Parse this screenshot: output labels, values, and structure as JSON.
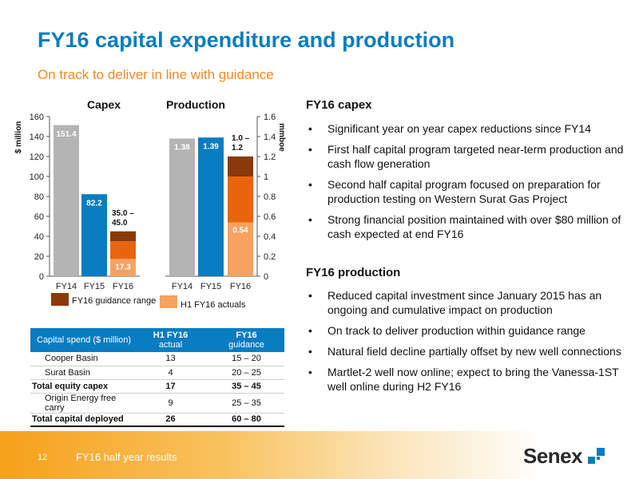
{
  "header": {
    "title": "FY16 capital expenditure and production",
    "subtitle": "On track to deliver in line with guidance"
  },
  "colors": {
    "title": "#0a7cc1",
    "subtitle": "#f08a24",
    "grey_bar": "#b4b4b4",
    "blue_bar": "#0a7cc1",
    "guidance_range": "#8a3a0a",
    "orange_mid": "#e8650d",
    "h1_actuals": "#f7a260",
    "table_header": "#0a7cc1"
  },
  "chart_data": [
    {
      "type": "bar",
      "title": "Capex",
      "ylabel": "$ million",
      "ylim": [
        0,
        160
      ],
      "yticks": [
        "0",
        "20",
        "40",
        "60",
        "80",
        "100",
        "120",
        "140",
        "160"
      ],
      "categories": [
        "FY14",
        "FY15",
        "FY16"
      ],
      "values": [
        151.4,
        82.2,
        null
      ],
      "data_labels": [
        "151.4",
        "82.2",
        ""
      ],
      "fy16_stack": {
        "h1_actuals": 17.3,
        "h1_label": "17.3",
        "guidance_low": 35.0,
        "guidance_high": 45.0,
        "guidance_label": "35.0 – 45.0"
      }
    },
    {
      "type": "bar",
      "title": "Production",
      "ylabel": "mmboe",
      "ylim": [
        0,
        1.6
      ],
      "yticks": [
        "0",
        "0.2",
        "0.4",
        "0.6",
        "0.8",
        "1",
        "1.2",
        "1.4",
        "1.6"
      ],
      "categories": [
        "FY14",
        "FY15",
        "FY16"
      ],
      "values": [
        1.38,
        1.39,
        null
      ],
      "data_labels": [
        "1.38",
        "1.39",
        ""
      ],
      "fy16_stack": {
        "h1_actuals": 0.54,
        "h1_label": "0.54",
        "guidance_low": 1.0,
        "guidance_high": 1.2,
        "guidance_label": "1.0 – 1.2"
      }
    }
  ],
  "legend": {
    "guidance": "FY16 guidance range",
    "actuals": "H1 FY16 actuals"
  },
  "table": {
    "header": {
      "name": "Capital spend ($ million)",
      "col1_top": "H1 FY16",
      "col1_sub": "actual",
      "col2_top": "FY16",
      "col2_sub": "guidance"
    },
    "rows": [
      {
        "name": "Cooper Basin",
        "actual": "13",
        "guidance": "15 – 20"
      },
      {
        "name": "Surat Basin",
        "actual": "4",
        "guidance": "20 – 25"
      },
      {
        "name": "Total equity capex",
        "actual": "17",
        "guidance": "35 – 45"
      },
      {
        "name": "Origin Energy free carry",
        "actual": "9",
        "guidance": "25 – 35"
      },
      {
        "name": "Total capital deployed",
        "actual": "26",
        "guidance": "60 – 80"
      }
    ]
  },
  "capex_section": {
    "heading": "FY16 capex",
    "bullets": [
      "Significant year on year capex reductions since FY14",
      "First half capital program targeted near-term production and cash flow generation",
      "Second half capital program focused on preparation for production testing on Western Surat Gas Project",
      "Strong financial position maintained with over $80 million of cash expected at end FY16"
    ]
  },
  "production_section": {
    "heading": "FY16 production",
    "bullets": [
      "Reduced capital investment since January 2015 has an ongoing and cumulative impact on production",
      "On track to deliver production within guidance range",
      "Natural field decline partially offset by new well connections",
      "Martlet-2 well now online; expect to bring the Vanessa-1ST well online during H2 FY16"
    ]
  },
  "footer": {
    "page_number": "12",
    "text": "FY16 half year results",
    "logo": "Senex"
  }
}
